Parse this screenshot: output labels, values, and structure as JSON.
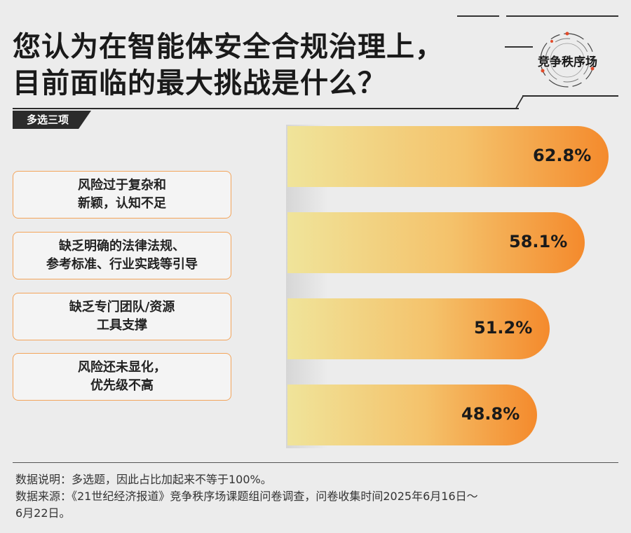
{
  "header": {
    "title_line1": "您认为在智能体安全合规治理上，",
    "title_line2": "目前面临的最大挑战是什么？",
    "badge": "多选三项",
    "logo_text": "竞争秩序场"
  },
  "chart_data": {
    "type": "bar",
    "orientation": "horizontal",
    "categories": [
      "风险过于复杂和新颖，认知不足",
      "缺乏明确的法律法规、参考标准、行业实践等引导",
      "缺乏专门团队/资源工具支撑",
      "风险还未显化，优先级不高"
    ],
    "category_lines": [
      [
        "风险过于复杂和",
        "新颖，认知不足"
      ],
      [
        "缺乏明确的法律法规、",
        "参考标准、行业实践等引导"
      ],
      [
        "缺乏专门团队/资源",
        "工具支撑"
      ],
      [
        "风险还未显化，",
        "优先级不高"
      ]
    ],
    "values": [
      62.8,
      58.1,
      51.2,
      48.8
    ],
    "value_labels": [
      "62.8%",
      "58.1%",
      "51.2%",
      "48.8%"
    ],
    "unit": "%",
    "colors": {
      "bar_start": "#f0e49a",
      "bar_end": "#f48a2c",
      "label_border": "#f3a45a"
    }
  },
  "footer": {
    "note1": "数据说明：多选题，因此占比加起来不等于100%。",
    "note2": "数据来源：《21世纪经济报道》竞争秩序场课题组问卷调查，问卷收集时间2025年6月16日～",
    "note3": "6月22日。"
  }
}
